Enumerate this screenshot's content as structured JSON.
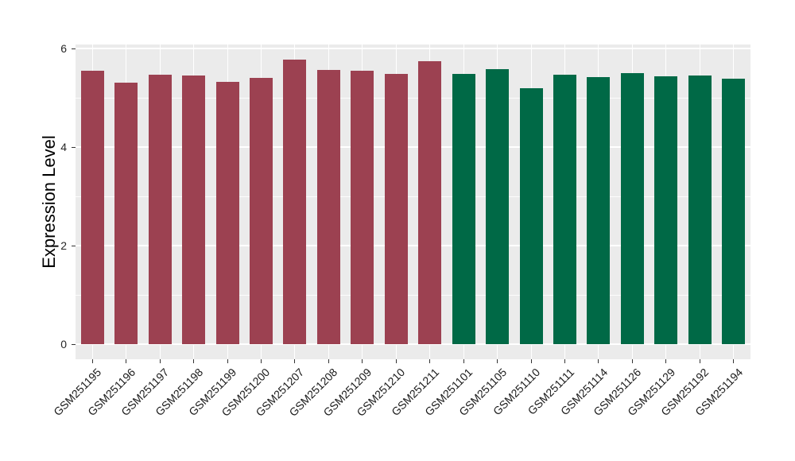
{
  "page": {
    "background": "#FFFFFF"
  },
  "chart_data": {
    "type": "bar",
    "title": "",
    "xlabel": "",
    "ylabel": "Expression Level",
    "ylim": [
      -0.3,
      6.08
    ],
    "yticks_major": [
      0,
      2,
      4,
      6
    ],
    "yticks_minor": [
      1,
      3,
      5
    ],
    "grid": "on",
    "legend": "none",
    "panel_background": "#EBEBEB",
    "grid_color": "#FFFFFF",
    "tick_color": "#333333",
    "group_colors": {
      "maroon": "#9C4151",
      "green": "#006946"
    },
    "bars": [
      {
        "label": "GSM251195",
        "value": 5.55,
        "group": "maroon"
      },
      {
        "label": "GSM251196",
        "value": 5.31,
        "group": "maroon"
      },
      {
        "label": "GSM251197",
        "value": 5.47,
        "group": "maroon"
      },
      {
        "label": "GSM251198",
        "value": 5.45,
        "group": "maroon"
      },
      {
        "label": "GSM251199",
        "value": 5.33,
        "group": "maroon"
      },
      {
        "label": "GSM251200",
        "value": 5.4,
        "group": "maroon"
      },
      {
        "label": "GSM251207",
        "value": 5.78,
        "group": "maroon"
      },
      {
        "label": "GSM251208",
        "value": 5.56,
        "group": "maroon"
      },
      {
        "label": "GSM251209",
        "value": 5.55,
        "group": "maroon"
      },
      {
        "label": "GSM251210",
        "value": 5.49,
        "group": "maroon"
      },
      {
        "label": "GSM251211",
        "value": 5.75,
        "group": "maroon"
      },
      {
        "label": "GSM251101",
        "value": 5.48,
        "group": "green"
      },
      {
        "label": "GSM251105",
        "value": 5.58,
        "group": "green"
      },
      {
        "label": "GSM251110",
        "value": 5.19,
        "group": "green"
      },
      {
        "label": "GSM251111",
        "value": 5.46,
        "group": "green"
      },
      {
        "label": "GSM251114",
        "value": 5.42,
        "group": "green"
      },
      {
        "label": "GSM251126",
        "value": 5.5,
        "group": "green"
      },
      {
        "label": "GSM251129",
        "value": 5.44,
        "group": "green"
      },
      {
        "label": "GSM251192",
        "value": 5.45,
        "group": "green"
      },
      {
        "label": "GSM251194",
        "value": 5.39,
        "group": "green"
      }
    ]
  }
}
